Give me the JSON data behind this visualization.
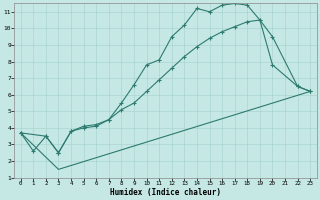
{
  "xlabel": "Humidex (Indice chaleur)",
  "bg_color": "#c5e8e5",
  "grid_color": "#aad4d0",
  "line_color": "#2d7a6e",
  "xlim": [
    -0.5,
    23.5
  ],
  "ylim": [
    1,
    11.5
  ],
  "xticks": [
    0,
    1,
    2,
    3,
    4,
    5,
    6,
    7,
    8,
    9,
    10,
    11,
    12,
    13,
    14,
    15,
    16,
    17,
    18,
    19,
    20,
    21,
    22,
    23
  ],
  "yticks": [
    1,
    2,
    3,
    4,
    5,
    6,
    7,
    8,
    9,
    10,
    11
  ],
  "line1_x": [
    0,
    1,
    2,
    3,
    4,
    5,
    6,
    7,
    8,
    9,
    10,
    11,
    12,
    13,
    14,
    15,
    16,
    17,
    18,
    19,
    20,
    22,
    23
  ],
  "line1_y": [
    3.7,
    2.6,
    3.5,
    2.5,
    3.8,
    4.0,
    4.1,
    4.5,
    5.5,
    6.6,
    7.8,
    8.1,
    9.5,
    10.2,
    11.2,
    11.0,
    11.4,
    11.5,
    11.4,
    10.5,
    7.8,
    6.5,
    6.2
  ],
  "line2_x": [
    0,
    2,
    3,
    4,
    5,
    6,
    7,
    8,
    9,
    10,
    11,
    12,
    13,
    14,
    15,
    16,
    17,
    18,
    19,
    20,
    22,
    23
  ],
  "line2_y": [
    3.7,
    3.5,
    2.5,
    3.8,
    4.1,
    4.2,
    4.5,
    5.1,
    5.5,
    6.2,
    6.9,
    7.6,
    8.3,
    8.9,
    9.4,
    9.8,
    10.1,
    10.4,
    10.5,
    9.5,
    6.5,
    6.2
  ],
  "line3_x": [
    0,
    3,
    23
  ],
  "line3_y": [
    3.7,
    1.5,
    6.2
  ]
}
